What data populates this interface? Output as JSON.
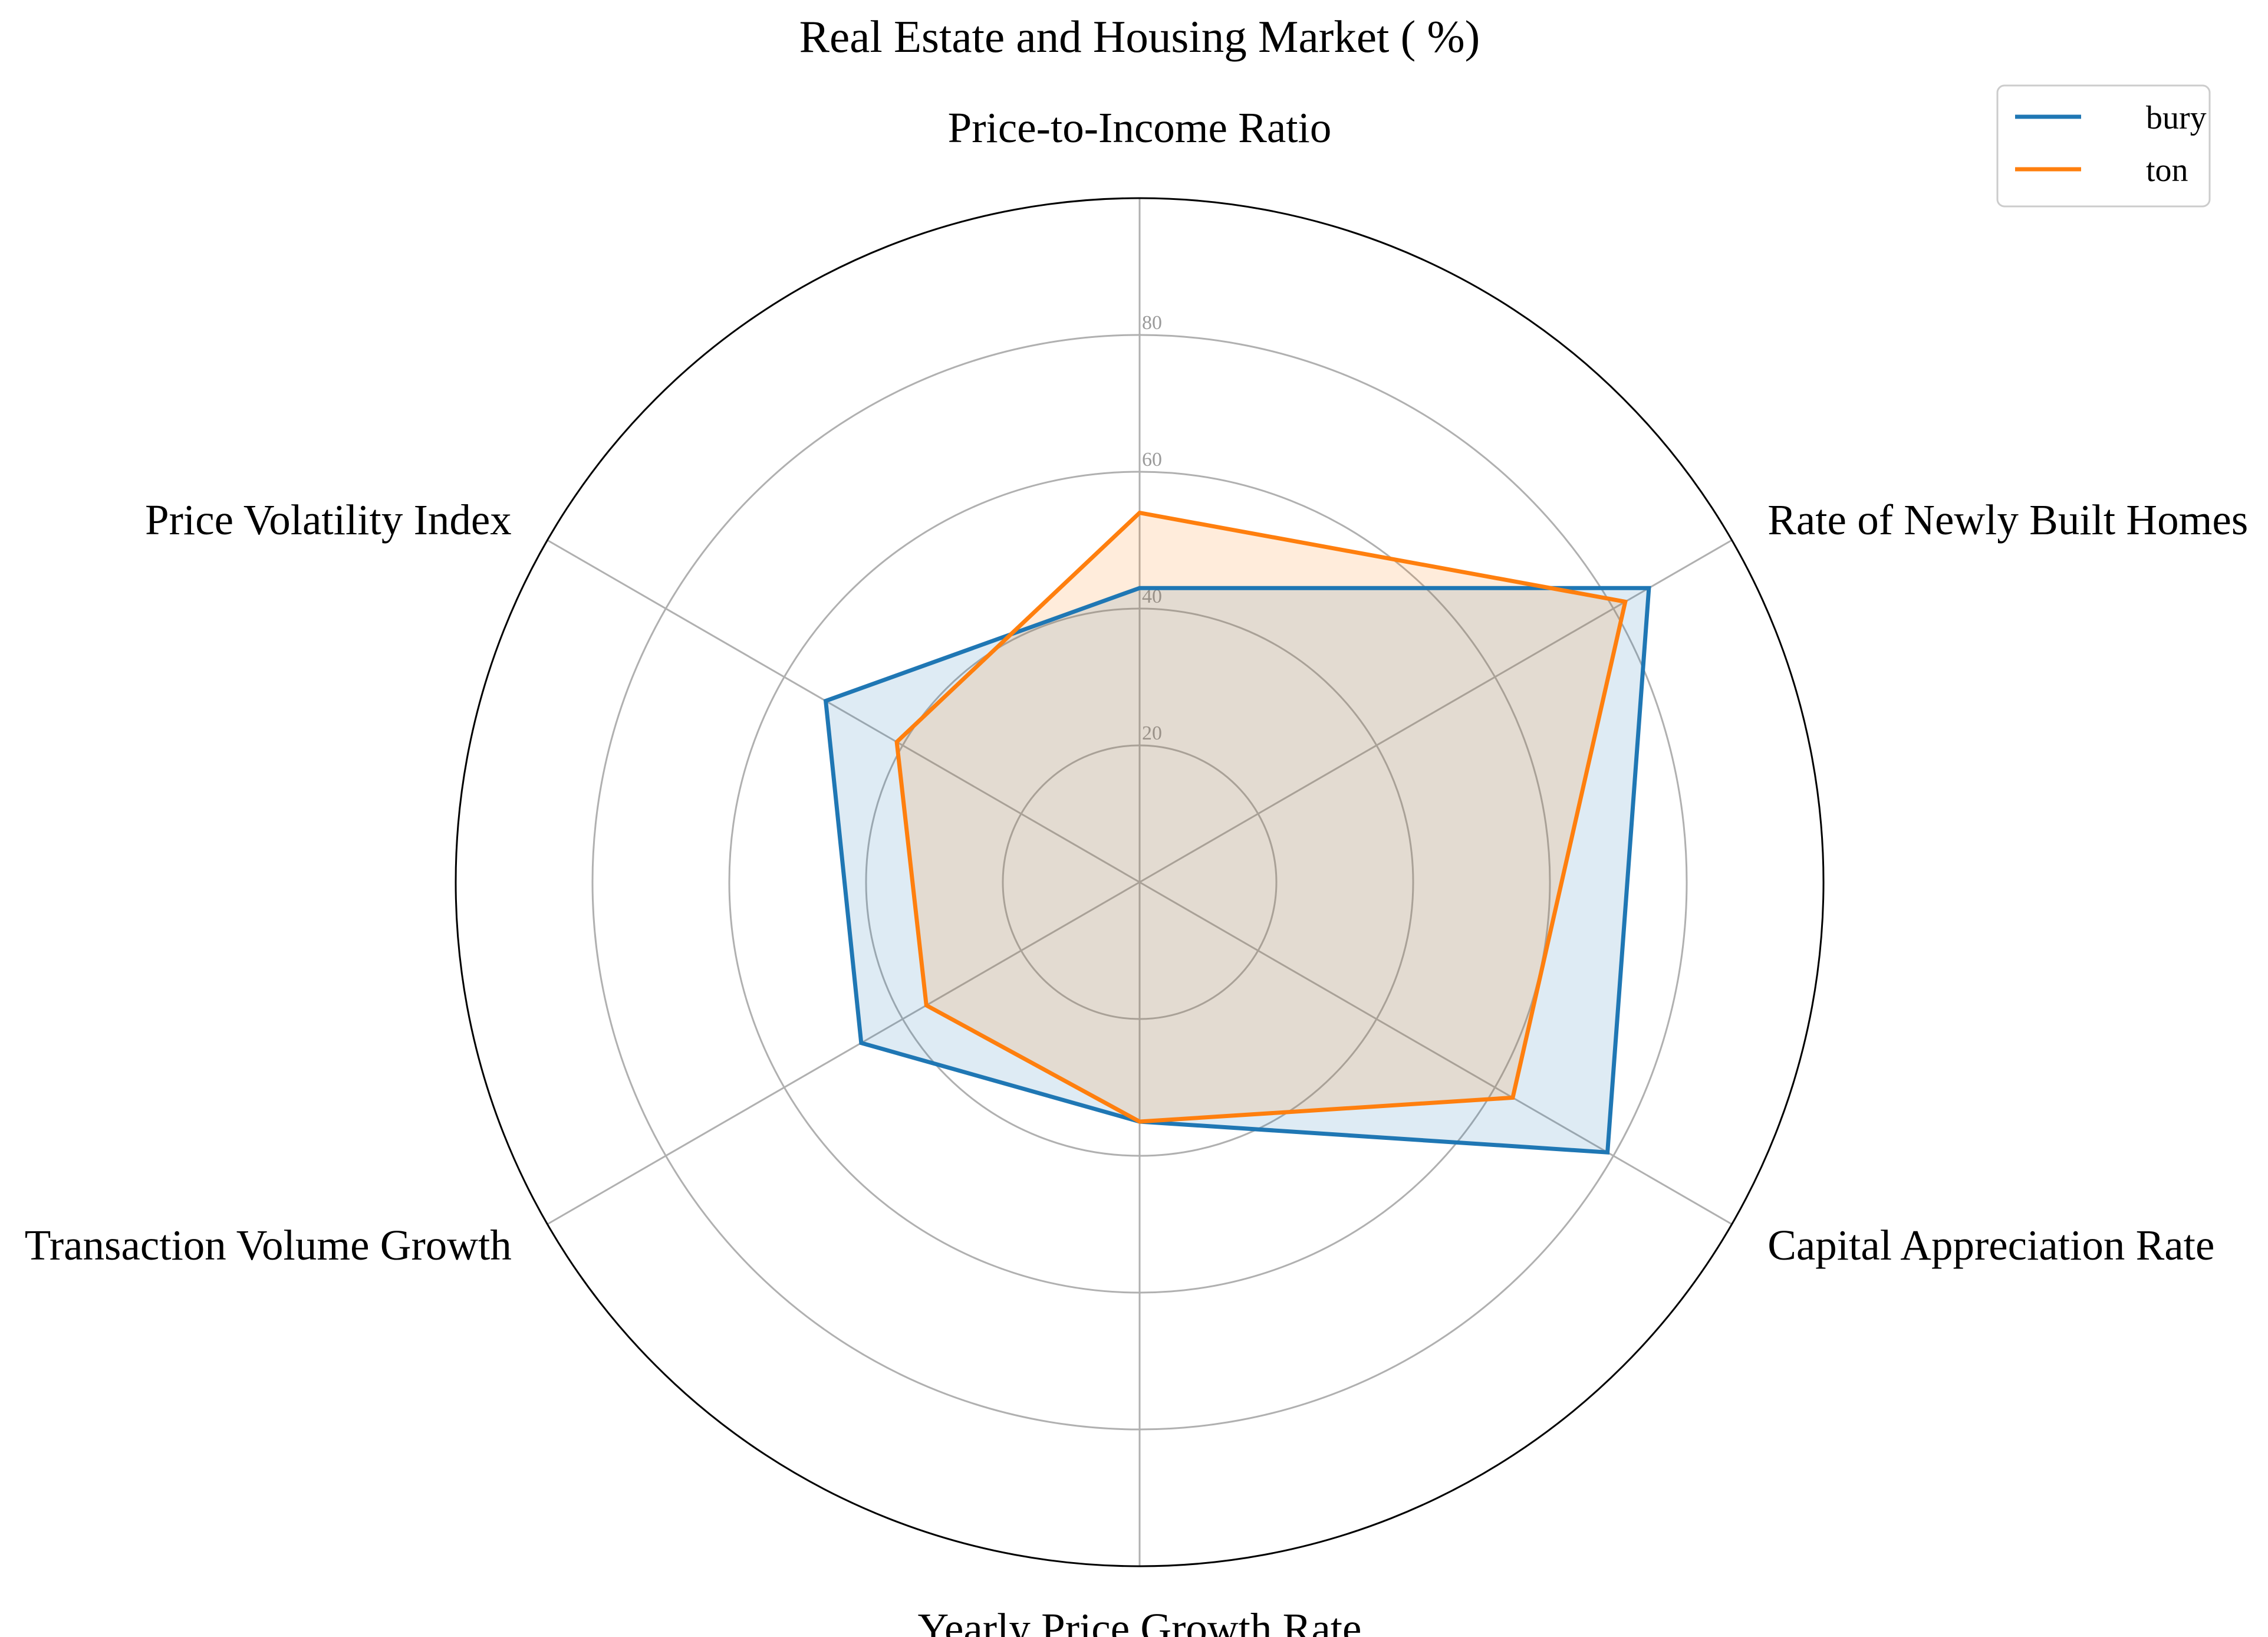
{
  "chart_data": {
    "type": "radar",
    "title": "Real Estate and Housing Market ( %)",
    "categories": [
      "Price-to-Income Ratio",
      "Rate of Newly Built Homes",
      "Capital Appreciation Rate",
      "Yearly Price Growth Rate",
      "Transaction Volume Growth",
      "Price Volatility Index"
    ],
    "series": [
      {
        "name": "bury",
        "color": "#1f77b4",
        "values": [
          43,
          86,
          79,
          35,
          47,
          53
        ]
      },
      {
        "name": "ton",
        "color": "#ff7f0e",
        "values": [
          54,
          82,
          63,
          35,
          36,
          41
        ]
      }
    ],
    "rlim": [
      0,
      100
    ],
    "rticks": [
      20,
      40,
      60,
      80
    ],
    "rtick_labels": [
      "20",
      "40",
      "60",
      "80"
    ],
    "grid": true,
    "legend_position": "top-right",
    "fill_opacity": 0.15
  }
}
